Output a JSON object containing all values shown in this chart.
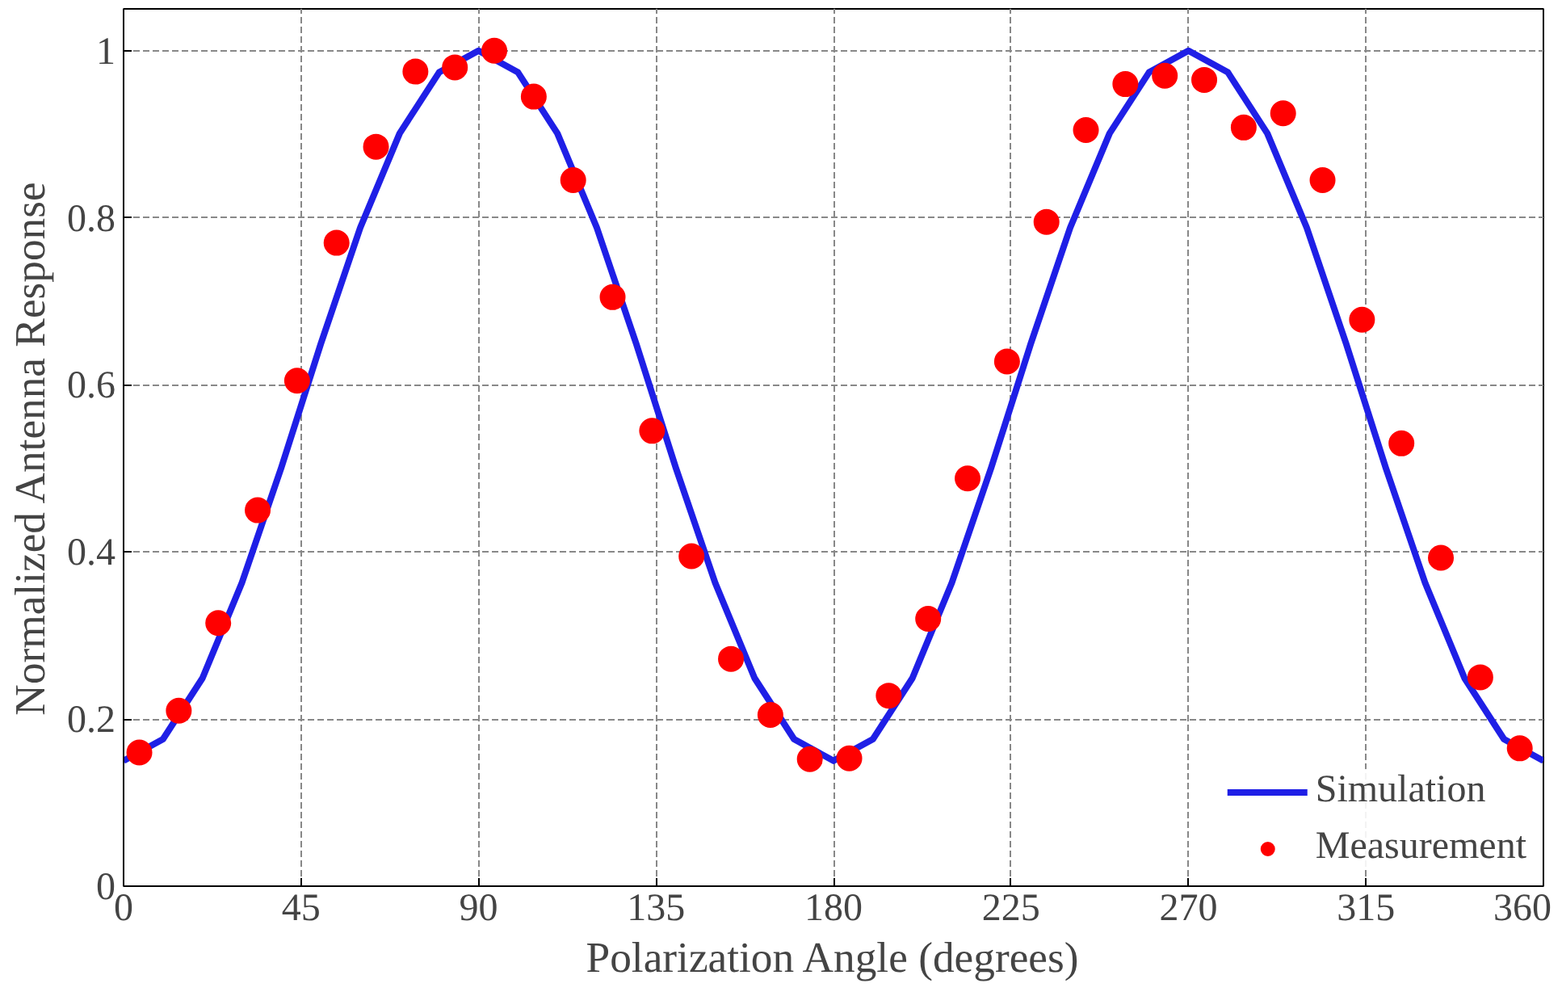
{
  "chart_data": {
    "type": "line",
    "xlabel": "Polarization Angle (degrees)",
    "ylabel": "Normalized Antenna Response",
    "xlim": [
      0,
      360
    ],
    "xticks": [
      0,
      45,
      90,
      135,
      180,
      225,
      270,
      315,
      360
    ],
    "ylim": [
      0,
      1.05
    ],
    "yticks": [
      0,
      0.2,
      0.4,
      0.6,
      0.8,
      1
    ],
    "grid": true,
    "legend": "bottom right",
    "series": [
      {
        "name": "Simulation",
        "color": "#1f1fe6",
        "line_style": "solid",
        "x": [
          0,
          10,
          20,
          30,
          40,
          50,
          60,
          70,
          80,
          90,
          100,
          110,
          120,
          130,
          140,
          150,
          160,
          170,
          180,
          190,
          200,
          210,
          220,
          230,
          240,
          250,
          260,
          270,
          280,
          290,
          300,
          310,
          320,
          330,
          340,
          350,
          360
        ],
        "values": [
          0.15,
          0.176,
          0.249,
          0.363,
          0.501,
          0.649,
          0.788,
          0.901,
          0.974,
          1.0,
          0.974,
          0.901,
          0.788,
          0.649,
          0.501,
          0.363,
          0.249,
          0.176,
          0.15,
          0.176,
          0.249,
          0.363,
          0.501,
          0.649,
          0.788,
          0.901,
          0.974,
          1.0,
          0.974,
          0.901,
          0.788,
          0.649,
          0.501,
          0.363,
          0.249,
          0.176,
          0.15
        ]
      },
      {
        "name": "Measurement",
        "type": "scatter",
        "color": "#ff0000",
        "marker": "circle",
        "x": [
          4,
          14,
          24,
          34,
          44,
          54,
          64,
          74,
          84,
          94,
          104,
          114,
          124,
          134,
          144,
          154,
          164,
          174,
          184,
          194,
          204,
          214,
          224,
          234,
          244,
          254,
          264,
          274,
          284,
          294,
          304,
          314,
          324,
          334,
          344,
          354
        ],
        "values": [
          0.16,
          0.21,
          0.315,
          0.45,
          0.605,
          0.77,
          0.885,
          0.975,
          0.98,
          1.0,
          0.945,
          0.845,
          0.705,
          0.545,
          0.395,
          0.272,
          0.205,
          0.152,
          0.153,
          0.228,
          0.32,
          0.488,
          0.628,
          0.795,
          0.905,
          0.96,
          0.97,
          0.965,
          0.908,
          0.925,
          0.845,
          0.678,
          0.53,
          0.393,
          0.25,
          0.165
        ]
      }
    ]
  }
}
